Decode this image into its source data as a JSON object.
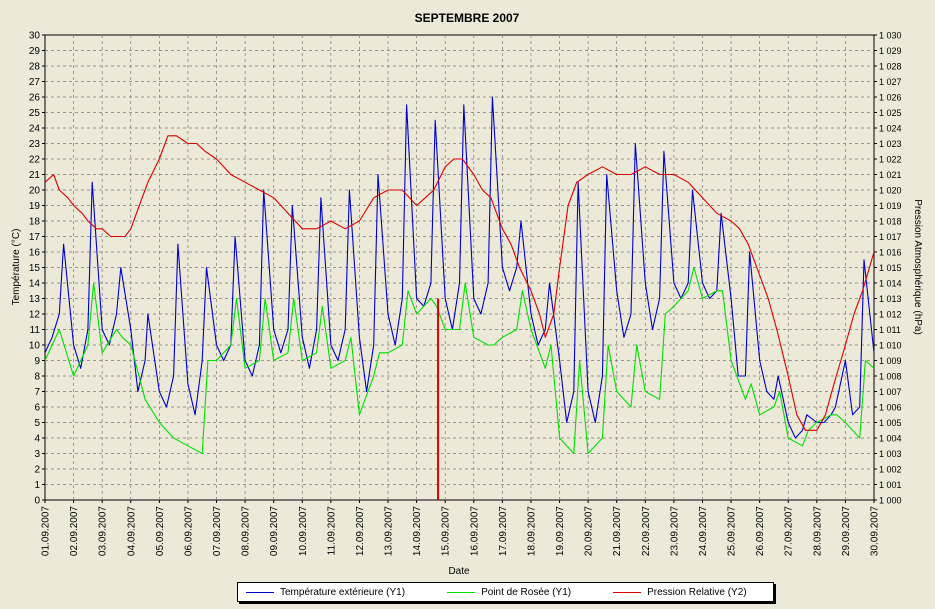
{
  "chart_data": {
    "type": "line",
    "title": "SEPTEMBRE   2007",
    "xlabel": "Date",
    "ylabel_left": "Température (°C)",
    "ylabel_right": "Pression Atmosphérique (hPa)",
    "y_left_lim": [
      0,
      30
    ],
    "y_right_lim": [
      1000,
      1030
    ],
    "y_left_ticks": [
      "0",
      "1",
      "2",
      "3",
      "4",
      "5",
      "6",
      "7",
      "8",
      "9",
      "10",
      "11",
      "12",
      "13",
      "14",
      "15",
      "16",
      "17",
      "18",
      "19",
      "20",
      "21",
      "22",
      "23",
      "24",
      "25",
      "26",
      "27",
      "28",
      "29",
      "30"
    ],
    "y_right_ticks": [
      "1 000",
      "1 001",
      "1 002",
      "1 003",
      "1 004",
      "1 005",
      "1 006",
      "1 007",
      "1 008",
      "1 009",
      "1 010",
      "1 011",
      "1 012",
      "1 013",
      "1 014",
      "1 015",
      "1 016",
      "1 017",
      "1 018",
      "1 019",
      "1 020",
      "1 021",
      "1 022",
      "1 023",
      "1 024",
      "1 025",
      "1 026",
      "1 027",
      "1 028",
      "1 029",
      "1 030"
    ],
    "x_tick_labels": [
      "01.09.2007",
      "02.09.2007",
      "03.09.2007",
      "04.09.2007",
      "05.09.2007",
      "06.09.2007",
      "07.09.2007",
      "08.09.2007",
      "09.09.2007",
      "10.09.2007",
      "11.09.2007",
      "12.09.2007",
      "13.09.2007",
      "14.09.2007",
      "15.09.2007",
      "16.09.2007",
      "17.09.2007",
      "18.09.2007",
      "19.09.2007",
      "20.09.2007",
      "21.09.2007",
      "22.09.2007",
      "23.09.2007",
      "24.09.2007",
      "25.09.2007",
      "26.09.2007",
      "27.09.2007",
      "28.09.2007",
      "29.09.2007",
      "30.09.2007"
    ],
    "grid": true,
    "cursor_date": "14.09.2007 18:00",
    "series": [
      {
        "name": "Température extérieure (Y1)",
        "axis": "left",
        "color": "#0000cc",
        "x_day": [
          1.0,
          1.25,
          1.5,
          1.65,
          2.0,
          2.25,
          2.5,
          2.65,
          3.0,
          3.25,
          3.5,
          3.65,
          4.0,
          4.25,
          4.5,
          4.6,
          5.0,
          5.25,
          5.5,
          5.65,
          6.0,
          6.25,
          6.5,
          6.65,
          7.0,
          7.25,
          7.5,
          7.65,
          8.0,
          8.25,
          8.5,
          8.65,
          9.0,
          9.25,
          9.5,
          9.65,
          10.0,
          10.25,
          10.5,
          10.65,
          11.0,
          11.25,
          11.5,
          11.65,
          12.0,
          12.25,
          12.5,
          12.65,
          13.0,
          13.25,
          13.5,
          13.65,
          14.0,
          14.25,
          14.5,
          14.65,
          15.0,
          15.25,
          15.5,
          15.65,
          16.0,
          16.25,
          16.5,
          16.65,
          17.0,
          17.25,
          17.5,
          17.65,
          18.0,
          18.25,
          18.5,
          18.65,
          19.0,
          19.25,
          19.5,
          19.65,
          20.0,
          20.25,
          20.5,
          20.65,
          21.0,
          21.25,
          21.5,
          21.65,
          22.0,
          22.25,
          22.5,
          22.65,
          23.0,
          23.25,
          23.5,
          23.65,
          24.0,
          24.25,
          24.5,
          24.65,
          25.0,
          25.25,
          25.5,
          25.65,
          26.0,
          26.25,
          26.5,
          26.65,
          27.0,
          27.25,
          27.5,
          27.65,
          28.0,
          28.25,
          28.5,
          28.65,
          29.0,
          29.25,
          29.5,
          29.65,
          30.0
        ],
        "values": [
          9.5,
          10.5,
          12.0,
          16.5,
          10.0,
          8.5,
          11.0,
          20.5,
          11.0,
          10.0,
          12.0,
          15.0,
          11.0,
          7.0,
          9.0,
          12.0,
          7.0,
          6.0,
          8.0,
          16.5,
          7.5,
          5.5,
          9.0,
          15.0,
          10.0,
          9.0,
          10.0,
          17.0,
          9.0,
          8.0,
          10.0,
          20.0,
          11.0,
          9.5,
          11.0,
          19.0,
          10.5,
          8.5,
          11.0,
          19.5,
          10.0,
          9.0,
          11.0,
          20.0,
          10.5,
          7.0,
          10.0,
          21.0,
          12.0,
          10.0,
          13.0,
          25.5,
          13.0,
          12.5,
          14.0,
          24.5,
          13.0,
          11.0,
          14.0,
          25.5,
          13.0,
          12.0,
          14.0,
          26.0,
          15.0,
          13.5,
          15.0,
          18.0,
          12.0,
          10.0,
          11.0,
          14.0,
          9.0,
          5.0,
          7.0,
          20.5,
          7.0,
          5.0,
          8.0,
          21.0,
          13.5,
          10.5,
          12.0,
          23.0,
          14.0,
          11.0,
          13.0,
          22.5,
          14.0,
          13.0,
          14.0,
          20.0,
          14.0,
          13.0,
          13.5,
          18.5,
          13.0,
          8.0,
          8.0,
          16.0,
          9.0,
          7.0,
          6.5,
          8.0,
          5.0,
          4.0,
          4.5,
          5.5,
          5.0,
          5.0,
          5.5,
          6.0,
          9.0,
          5.5,
          6.0,
          15.5,
          9.5
        ]
      },
      {
        "name": "Point de Rosée (Y1)",
        "axis": "left",
        "color": "#00e000",
        "x_day": [
          1.0,
          1.5,
          2.0,
          2.5,
          2.7,
          3.0,
          3.5,
          3.7,
          4.0,
          4.5,
          5.0,
          5.5,
          6.0,
          6.5,
          6.7,
          7.0,
          7.5,
          7.7,
          8.0,
          8.5,
          8.7,
          9.0,
          9.5,
          9.7,
          10.0,
          10.5,
          10.7,
          11.0,
          11.5,
          11.7,
          12.0,
          12.5,
          12.7,
          13.0,
          13.5,
          13.7,
          14.0,
          14.5,
          14.7,
          15.0,
          15.5,
          15.7,
          16.0,
          16.5,
          16.7,
          17.0,
          17.5,
          17.7,
          18.0,
          18.5,
          18.7,
          19.0,
          19.5,
          19.7,
          20.0,
          20.5,
          20.7,
          21.0,
          21.5,
          21.7,
          22.0,
          22.5,
          22.7,
          23.0,
          23.5,
          23.7,
          24.0,
          24.5,
          24.7,
          25.0,
          25.5,
          25.7,
          26.0,
          26.5,
          26.7,
          27.0,
          27.5,
          27.7,
          28.0,
          28.5,
          28.7,
          29.0,
          29.5,
          29.7,
          30.0
        ],
        "values": [
          9.0,
          11.0,
          8.0,
          10.0,
          14.0,
          9.5,
          11.0,
          10.5,
          10.0,
          6.5,
          5.0,
          4.0,
          3.5,
          3.0,
          9.0,
          9.0,
          10.0,
          13.0,
          8.5,
          9.0,
          13.0,
          9.0,
          9.5,
          13.0,
          9.0,
          9.5,
          12.5,
          8.5,
          9.0,
          10.5,
          5.5,
          8.0,
          9.5,
          9.5,
          10.0,
          13.5,
          12.0,
          13.0,
          12.5,
          11.0,
          11.0,
          14.0,
          10.5,
          10.0,
          10.0,
          10.5,
          11.0,
          13.5,
          11.0,
          8.5,
          10.0,
          4.0,
          3.0,
          9.0,
          3.0,
          4.0,
          10.0,
          7.0,
          6.0,
          10.0,
          7.0,
          6.5,
          12.0,
          12.5,
          13.5,
          15.0,
          13.0,
          13.5,
          13.5,
          9.0,
          6.5,
          7.5,
          5.5,
          6.0,
          7.0,
          4.0,
          3.5,
          4.5,
          5.0,
          5.5,
          5.5,
          5.0,
          4.0,
          9.0,
          8.5
        ]
      },
      {
        "name": "Pression Relative (Y2)",
        "axis": "right",
        "color": "#dd0000",
        "x_day": [
          1.0,
          1.3,
          1.5,
          1.8,
          2.0,
          2.3,
          2.5,
          2.8,
          3.0,
          3.3,
          3.5,
          3.8,
          4.0,
          4.3,
          4.6,
          5.0,
          5.3,
          5.6,
          6.0,
          6.3,
          6.6,
          7.0,
          7.5,
          8.0,
          8.5,
          9.0,
          9.5,
          10.0,
          10.5,
          11.0,
          11.5,
          12.0,
          12.5,
          13.0,
          13.5,
          14.0,
          14.3,
          14.6,
          15.0,
          15.3,
          15.6,
          16.0,
          16.3,
          16.6,
          17.0,
          17.3,
          17.6,
          18.0,
          18.3,
          18.5,
          18.8,
          19.0,
          19.3,
          19.6,
          20.0,
          20.5,
          21.0,
          21.5,
          22.0,
          22.5,
          23.0,
          23.5,
          24.0,
          24.5,
          25.0,
          25.3,
          25.6,
          26.0,
          26.3,
          26.6,
          27.0,
          27.3,
          27.6,
          28.0,
          28.3,
          28.6,
          29.0,
          29.3,
          29.6,
          30.0
        ],
        "values": [
          1020.5,
          1021.0,
          1020.0,
          1019.5,
          1019.0,
          1018.5,
          1018.0,
          1017.5,
          1017.5,
          1017.0,
          1017.0,
          1017.0,
          1017.5,
          1019.0,
          1020.5,
          1022.0,
          1023.5,
          1023.5,
          1023.0,
          1023.0,
          1022.5,
          1022.0,
          1021.0,
          1020.5,
          1020.0,
          1019.5,
          1018.5,
          1017.5,
          1017.5,
          1018.0,
          1017.5,
          1018.0,
          1019.5,
          1020.0,
          1020.0,
          1019.0,
          1019.5,
          1020.0,
          1021.5,
          1022.0,
          1022.0,
          1021.0,
          1020.0,
          1019.5,
          1017.5,
          1016.5,
          1015.0,
          1013.5,
          1012.0,
          1010.5,
          1012.0,
          1015.0,
          1019.0,
          1020.5,
          1021.0,
          1021.5,
          1021.0,
          1021.0,
          1021.5,
          1021.0,
          1021.0,
          1020.5,
          1019.5,
          1018.5,
          1018.0,
          1017.5,
          1016.5,
          1014.5,
          1013.0,
          1011.0,
          1008.0,
          1005.5,
          1004.5,
          1004.5,
          1005.5,
          1007.5,
          1010.0,
          1012.0,
          1013.5,
          1016.0
        ]
      }
    ]
  }
}
